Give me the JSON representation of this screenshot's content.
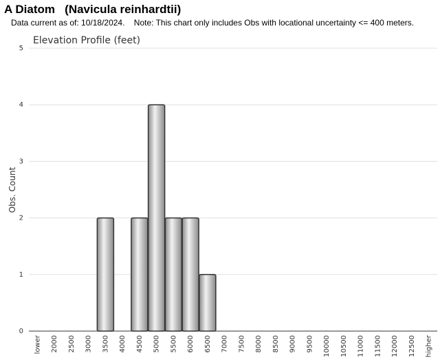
{
  "header": {
    "title": "A Diatom   (Navicula reinhardtii)",
    "subtitle": "Data current as of: 10/18/2024.    Note: This chart only includes Obs with locational uncertainty <= 400 meters."
  },
  "chart_data": {
    "type": "bar",
    "title": "Elevation Profile (feet)",
    "xlabel": "",
    "ylabel": "Obs. Count",
    "categories": [
      "lower",
      "2000",
      "2500",
      "3000",
      "3500",
      "4000",
      "4500",
      "5000",
      "5500",
      "6000",
      "6500",
      "7000",
      "7500",
      "8000",
      "8500",
      "9000",
      "9500",
      "10000",
      "10500",
      "11000",
      "11500",
      "12000",
      "12500",
      "higher"
    ],
    "values": [
      0,
      0,
      0,
      0,
      2,
      0,
      2,
      4,
      2,
      2,
      1,
      0,
      0,
      0,
      0,
      0,
      0,
      0,
      0,
      0,
      0,
      0,
      0,
      0
    ],
    "ylim": [
      0,
      5
    ],
    "yticks": [
      0,
      1,
      2,
      3,
      4,
      5
    ],
    "grid": true,
    "legend": "none",
    "colors": {
      "bar_edge": "#333333",
      "bar_light": "#f2f2f2",
      "bar_dark": "#8a8a8a",
      "grid": "#e0e0e0"
    }
  }
}
